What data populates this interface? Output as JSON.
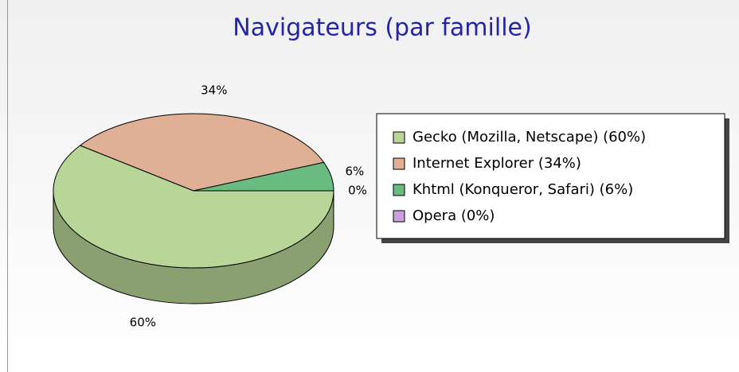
{
  "chart_data": {
    "type": "pie",
    "title": "Navigateurs (par famille)",
    "categories": [
      "Gecko (Mozilla, Netscape) (60%)",
      "Internet Explorer (34%)",
      "Khtml (Konqueror, Safari) (6%)",
      "Opera (0%)"
    ],
    "values": [
      60,
      34,
      6,
      0
    ],
    "value_labels": [
      "60%",
      "34%",
      "6%",
      "0%"
    ],
    "colors": [
      "#b9d597",
      "#e0b096",
      "#6abb82",
      "#c8a0e0"
    ],
    "legend": "right"
  }
}
